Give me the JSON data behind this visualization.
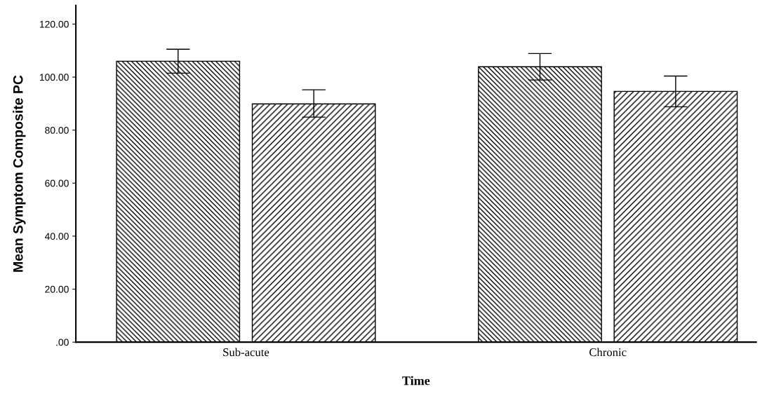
{
  "chart_data": {
    "type": "bar",
    "xlabel": "Time",
    "ylabel": "Mean Symptom Composite PC",
    "categories": [
      "Sub-acute",
      "Chronic"
    ],
    "series": [
      {
        "color": "#000000",
        "values": [
          106.0,
          103.9
        ],
        "errors": [
          [
            101.5,
            110.5
          ],
          [
            98.9,
            108.9
          ]
        ]
      },
      {
        "color": "#000000",
        "values": [
          89.9,
          94.6
        ],
        "errors": [
          [
            84.9,
            95.2
          ],
          [
            88.8,
            100.4
          ]
        ]
      }
    ],
    "ylim": [
      0,
      127
    ],
    "yticks": [
      {
        "value": 0,
        "label": ".00"
      },
      {
        "value": 20,
        "label": "20.00"
      },
      {
        "value": 40,
        "label": "40.00"
      },
      {
        "value": 60,
        "label": "60.00"
      },
      {
        "value": 80,
        "label": "80.00"
      },
      {
        "value": 100,
        "label": "100.00"
      },
      {
        "value": 120,
        "label": "120.00"
      }
    ],
    "grid": false,
    "legend": false
  }
}
